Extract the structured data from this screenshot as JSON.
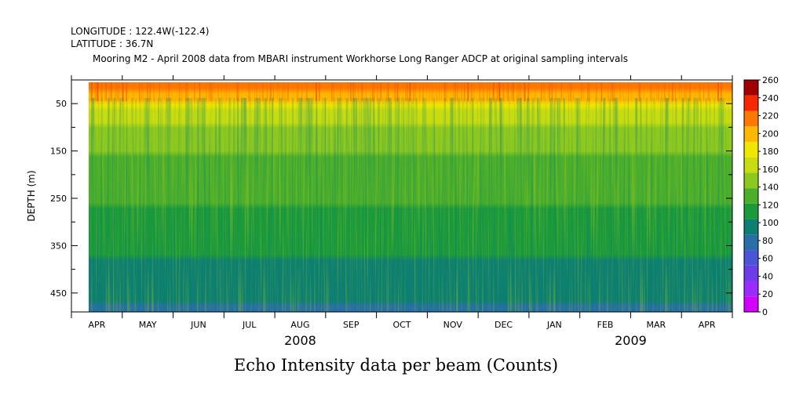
{
  "header": {
    "longitude": "LONGITUDE : 122.4W(-122.4)",
    "latitude": "LATITUDE : 36.7N",
    "title": "Mooring M2 - April 2008 data from MBARI instrument Workhorse Long Ranger ADCP at original sampling intervals"
  },
  "footer": {
    "title": "Echo Intensity data per beam (Counts)"
  },
  "chart_data": {
    "type": "heatmap",
    "title": "Mooring M2 - April 2008 data from MBARI instrument Workhorse Long Ranger ADCP at original sampling intervals",
    "xlabel": "",
    "ylabel": "DEPTH (m)",
    "y_inverted": true,
    "ylim": [
      0,
      490
    ],
    "y_ticks": [
      50,
      150,
      250,
      350,
      450
    ],
    "x_months": [
      "APR",
      "MAY",
      "JUN",
      "JUL",
      "AUG",
      "SEP",
      "OCT",
      "NOV",
      "DEC",
      "JAN",
      "FEB",
      "MAR",
      "APR"
    ],
    "x_years": [
      {
        "label": "2008",
        "month_index": 4
      },
      {
        "label": "2009",
        "month_index": 10.5
      }
    ],
    "colorbar": {
      "ticks": [
        0,
        20,
        40,
        60,
        80,
        100,
        120,
        140,
        160,
        180,
        200,
        220,
        240,
        260
      ],
      "colors": [
        "#d400ff",
        "#9a2cff",
        "#6d3ce8",
        "#4a54d6",
        "#2a6ea8",
        "#0e7f70",
        "#1c9a3a",
        "#4caf2a",
        "#8cc820",
        "#c8dc10",
        "#f0e600",
        "#ffb800",
        "#ff7800",
        "#f52800",
        "#a00000"
      ]
    },
    "z_units": "Counts",
    "data_start_depth": 5,
    "profile_by_depth": [
      {
        "depth": 5,
        "value": 222
      },
      {
        "depth": 20,
        "value": 208
      },
      {
        "depth": 45,
        "value": 188
      },
      {
        "depth": 80,
        "value": 160
      },
      {
        "depth": 150,
        "value": 140
      },
      {
        "depth": 250,
        "value": 125
      },
      {
        "depth": 350,
        "value": 108
      },
      {
        "depth": 450,
        "value": 92
      },
      {
        "depth": 490,
        "value": 82
      }
    ]
  }
}
